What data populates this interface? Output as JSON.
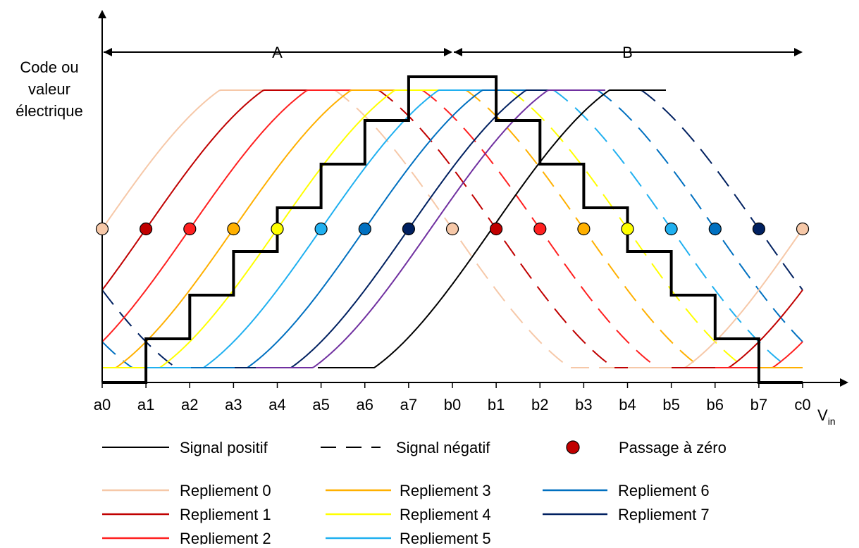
{
  "diagram": {
    "ylabel_lines": [
      "Code ou",
      "valeur",
      "électrique"
    ],
    "xlabel": {
      "main": "V",
      "sub": "in"
    },
    "range_labels": {
      "A": "A",
      "B": "B"
    },
    "ticks": [
      "a0",
      "a1",
      "a2",
      "a3",
      "a4",
      "a5",
      "a6",
      "a7",
      "b0",
      "b1",
      "b2",
      "b3",
      "b4",
      "b5",
      "b6",
      "b7",
      "c0"
    ],
    "zero_crossings": [
      {
        "tick": "a0",
        "fold": 0
      },
      {
        "tick": "a1",
        "fold": 1
      },
      {
        "tick": "a2",
        "fold": 2
      },
      {
        "tick": "a3",
        "fold": 3
      },
      {
        "tick": "a4",
        "fold": 4
      },
      {
        "tick": "a5",
        "fold": 5
      },
      {
        "tick": "a6",
        "fold": 6
      },
      {
        "tick": "a7",
        "fold": 7
      },
      {
        "tick": "b0",
        "fold": 0
      },
      {
        "tick": "b1",
        "fold": 1
      },
      {
        "tick": "b2",
        "fold": 2
      },
      {
        "tick": "b3",
        "fold": 3
      },
      {
        "tick": "b4",
        "fold": 4
      },
      {
        "tick": "b5",
        "fold": 5
      },
      {
        "tick": "b6",
        "fold": 6
      },
      {
        "tick": "b7",
        "fold": 7
      },
      {
        "tick": "c0",
        "fold": 0
      }
    ],
    "staircase_code": [
      0,
      1,
      2,
      3,
      4,
      5,
      6,
      7,
      7,
      6,
      5,
      4,
      3,
      2,
      1,
      0
    ],
    "folds": [
      {
        "name": "Repliement 0",
        "color": "#f6c8a8"
      },
      {
        "name": "Repliement 1",
        "color": "#c00000"
      },
      {
        "name": "Repliement 2",
        "color": "#ff2020"
      },
      {
        "name": "Repliement 3",
        "color": "#ffb000"
      },
      {
        "name": "Repliement 4",
        "color": "#ffff00"
      },
      {
        "name": "Repliement 5",
        "color": "#20b0f0"
      },
      {
        "name": "Repliement 6",
        "color": "#0070c0"
      },
      {
        "name": "Repliement 7",
        "color": "#002060"
      }
    ],
    "legend_top": [
      {
        "label": "Signal positif",
        "style": "solid"
      },
      {
        "label": "Signal négatif",
        "style": "dashed"
      },
      {
        "label": "Passage à zéro",
        "style": "dot"
      }
    ],
    "extra_fold_color": "#7030a0",
    "positive_black_color": "#000000"
  }
}
